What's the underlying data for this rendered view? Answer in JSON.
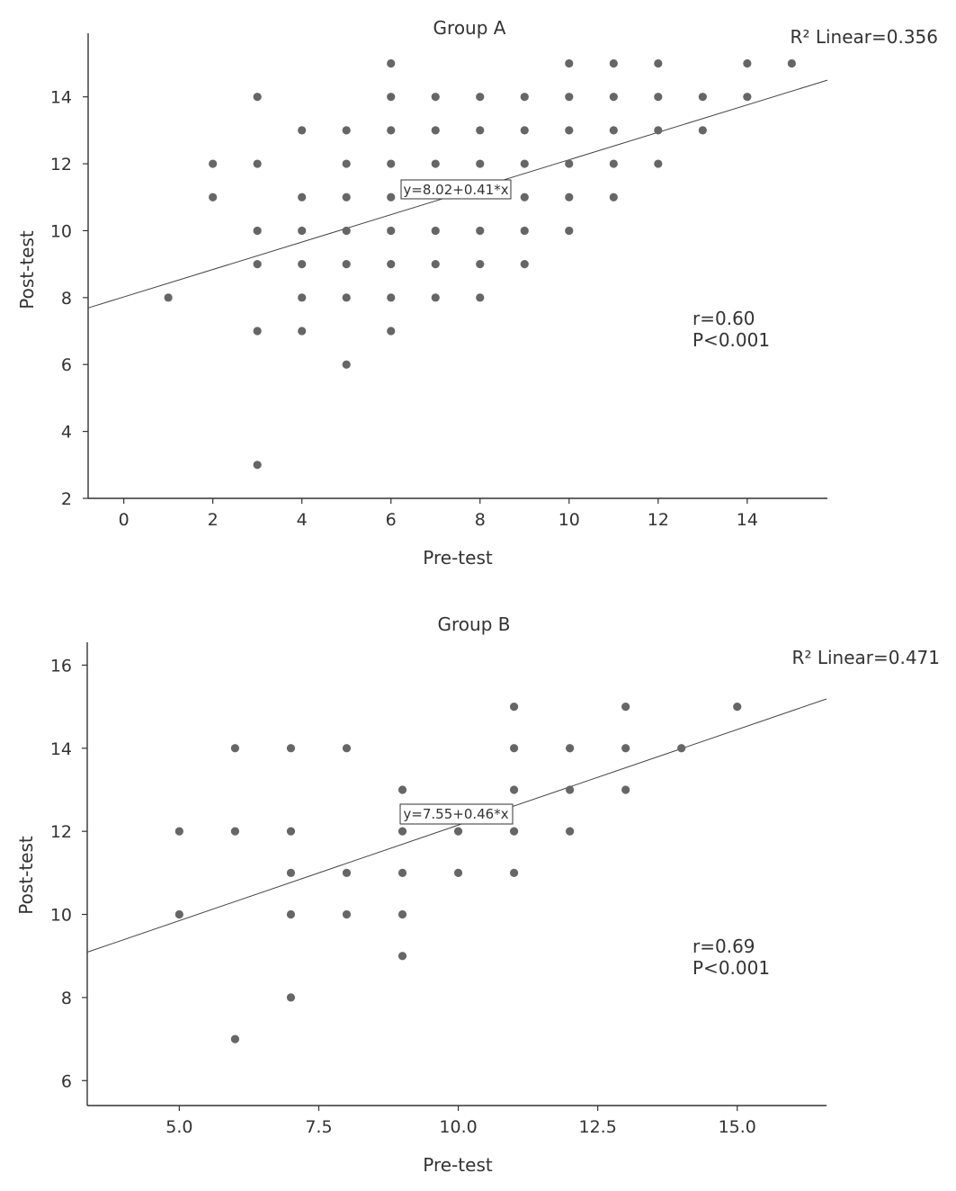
{
  "chart_data": [
    {
      "type": "scatter",
      "title": "Group A",
      "xlabel": "Pre-test",
      "ylabel": "Post-test",
      "xlim": [
        -0.8,
        15.8
      ],
      "ylim": [
        2,
        15.9
      ],
      "xticks": [
        0,
        2,
        4,
        6,
        8,
        10,
        12,
        14
      ],
      "xtick_labels": [
        "0",
        "2",
        "4",
        "6",
        "8",
        "10",
        "12",
        "14"
      ],
      "yticks": [
        2,
        4,
        6,
        8,
        10,
        12,
        14
      ],
      "ytick_labels": [
        "2",
        "4",
        "6",
        "8",
        "10",
        "12",
        "14"
      ],
      "r2_label": "R² Linear=0.356",
      "equation": "y=8.02+0.41*x",
      "fit": {
        "intercept": 8.02,
        "slope": 0.41
      },
      "stats": [
        "r=0.60",
        "P<0.001"
      ],
      "points": [
        [
          1,
          8
        ],
        [
          2,
          12
        ],
        [
          2,
          11
        ],
        [
          3,
          14
        ],
        [
          3,
          12
        ],
        [
          3,
          10
        ],
        [
          3,
          9
        ],
        [
          3,
          7
        ],
        [
          3,
          3
        ],
        [
          4,
          13
        ],
        [
          4,
          11
        ],
        [
          4,
          10
        ],
        [
          4,
          9
        ],
        [
          4,
          8
        ],
        [
          4,
          7
        ],
        [
          5,
          13
        ],
        [
          5,
          12
        ],
        [
          5,
          11
        ],
        [
          5,
          10
        ],
        [
          5,
          9
        ],
        [
          5,
          8
        ],
        [
          5,
          6
        ],
        [
          6,
          15
        ],
        [
          6,
          14
        ],
        [
          6,
          13
        ],
        [
          6,
          12
        ],
        [
          6,
          11
        ],
        [
          6,
          10
        ],
        [
          6,
          9
        ],
        [
          6,
          8
        ],
        [
          6,
          7
        ],
        [
          7,
          14
        ],
        [
          7,
          13
        ],
        [
          7,
          12
        ],
        [
          7,
          10
        ],
        [
          7,
          9
        ],
        [
          7,
          8
        ],
        [
          8,
          14
        ],
        [
          8,
          13
        ],
        [
          8,
          12
        ],
        [
          8,
          10
        ],
        [
          8,
          9
        ],
        [
          8,
          8
        ],
        [
          9,
          14
        ],
        [
          9,
          13
        ],
        [
          9,
          12
        ],
        [
          9,
          11
        ],
        [
          9,
          10
        ],
        [
          9,
          9
        ],
        [
          10,
          15
        ],
        [
          10,
          14
        ],
        [
          10,
          13
        ],
        [
          10,
          12
        ],
        [
          10,
          11
        ],
        [
          10,
          10
        ],
        [
          11,
          15
        ],
        [
          11,
          14
        ],
        [
          11,
          13
        ],
        [
          11,
          12
        ],
        [
          11,
          11
        ],
        [
          12,
          15
        ],
        [
          12,
          14
        ],
        [
          12,
          13
        ],
        [
          12,
          12
        ],
        [
          13,
          14
        ],
        [
          13,
          13
        ],
        [
          14,
          15
        ],
        [
          14,
          14
        ],
        [
          15,
          15
        ]
      ]
    },
    {
      "type": "scatter",
      "title": "Group B",
      "xlabel": "Pre-test",
      "ylabel": "Post-test",
      "xlim": [
        3.35,
        16.6
      ],
      "ylim": [
        5.4,
        16.55
      ],
      "xticks": [
        5.0,
        7.5,
        10.0,
        12.5,
        15.0
      ],
      "xtick_labels": [
        "5.0",
        "7.5",
        "10.0",
        "12.5",
        "15.0"
      ],
      "yticks": [
        6,
        8,
        10,
        12,
        14,
        16
      ],
      "ytick_labels": [
        "6",
        "8",
        "10",
        "12",
        "14",
        "16"
      ],
      "r2_label": "R² Linear=0.471",
      "equation": "y=7.55+0.46*x",
      "fit": {
        "intercept": 7.55,
        "slope": 0.46
      },
      "stats": [
        "r=0.69",
        "P<0.001"
      ],
      "points": [
        [
          5,
          12
        ],
        [
          5,
          10
        ],
        [
          6,
          14
        ],
        [
          6,
          12
        ],
        [
          6,
          7
        ],
        [
          7,
          14
        ],
        [
          7,
          12
        ],
        [
          7,
          11
        ],
        [
          7,
          10
        ],
        [
          7,
          8
        ],
        [
          8,
          14
        ],
        [
          8,
          11
        ],
        [
          8,
          10
        ],
        [
          9,
          13
        ],
        [
          9,
          12
        ],
        [
          9,
          11
        ],
        [
          9,
          10
        ],
        [
          9,
          9
        ],
        [
          10,
          12
        ],
        [
          10,
          11
        ],
        [
          11,
          15
        ],
        [
          11,
          14
        ],
        [
          11,
          13
        ],
        [
          11,
          12
        ],
        [
          11,
          11
        ],
        [
          12,
          14
        ],
        [
          12,
          13
        ],
        [
          12,
          12
        ],
        [
          13,
          15
        ],
        [
          13,
          14
        ],
        [
          13,
          13
        ],
        [
          14,
          14
        ],
        [
          15,
          15
        ]
      ]
    }
  ]
}
